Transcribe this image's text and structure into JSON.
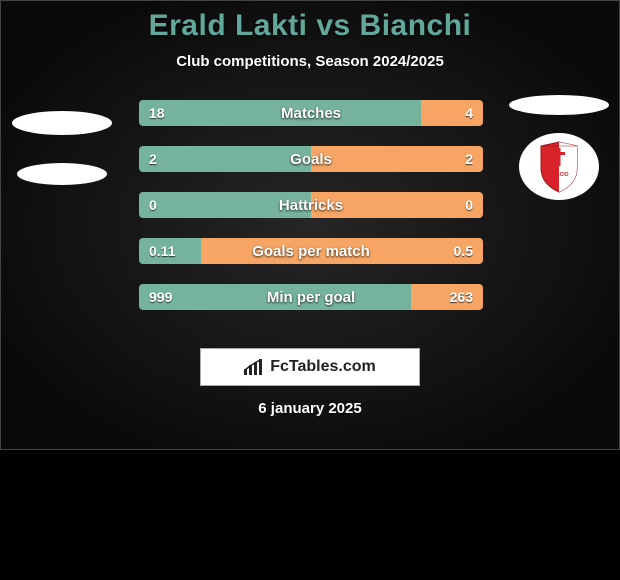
{
  "title": "Erald Lakti vs Bianchi",
  "subtitle": "Club competitions, Season 2024/2025",
  "date": "6 january 2025",
  "brand": "FcTables.com",
  "colors": {
    "left_bar": "#76b39d",
    "right_bar": "#f6a564",
    "title_color": "#62a89a",
    "bg_inner": "#262626",
    "bg_outer": "#0a0a0a",
    "shield_red": "#d8232a"
  },
  "stats": [
    {
      "label": "Matches",
      "left_val": "18",
      "right_val": "4",
      "left_pct": 82,
      "right_pct": 18
    },
    {
      "label": "Goals",
      "left_val": "2",
      "right_val": "2",
      "left_pct": 50,
      "right_pct": 50
    },
    {
      "label": "Hattricks",
      "left_val": "0",
      "right_val": "0",
      "left_pct": 50,
      "right_pct": 50
    },
    {
      "label": "Goals per match",
      "left_val": "0.11",
      "right_val": "0.5",
      "left_pct": 18,
      "right_pct": 82
    },
    {
      "label": "Min per goal",
      "left_val": "999",
      "right_val": "263",
      "left_pct": 79,
      "right_pct": 21
    }
  ]
}
